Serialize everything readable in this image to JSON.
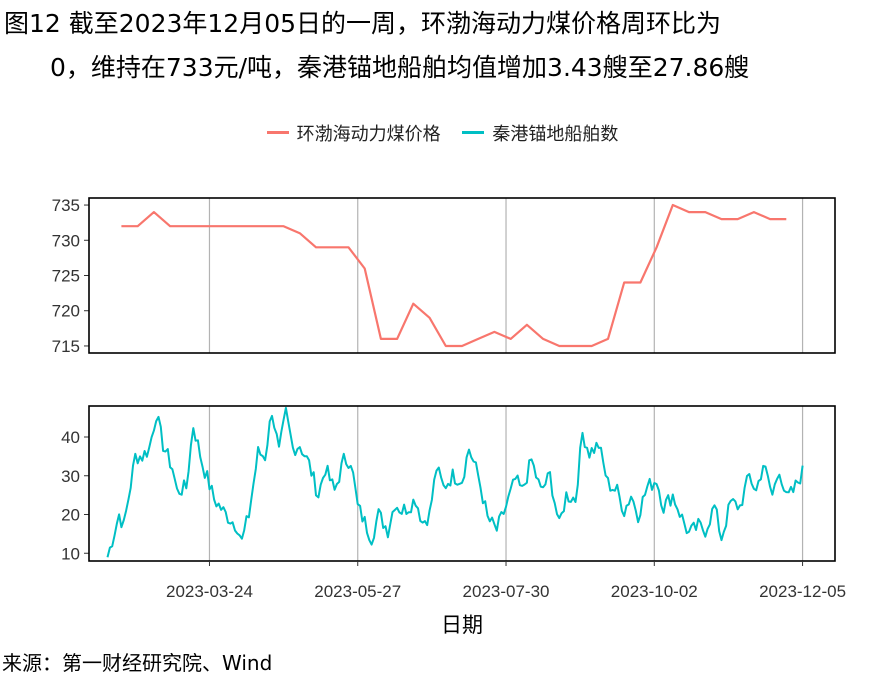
{
  "title": {
    "line1": "图12  截至2023年12月05日的一周，环渤海动力煤价格周环比为",
    "line2": "0，维持在733元/吨，秦港锚地船舶均值增加3.43艘至27.86艘"
  },
  "source": "来源：第一财经研究院、Wind",
  "colors": {
    "price": "#F8766D",
    "ships": "#00BFC4",
    "grid": "#B3B3B3"
  },
  "chart_data": [
    {
      "type": "line",
      "panel": "top",
      "series": [
        {
          "name": "环渤海动力煤价格",
          "x": [
            "2023-02-14",
            "2023-02-21",
            "2023-02-28",
            "2023-03-07",
            "2023-03-14",
            "2023-03-21",
            "2023-03-28",
            "2023-04-04",
            "2023-04-11",
            "2023-04-18",
            "2023-04-25",
            "2023-05-02",
            "2023-05-09",
            "2023-05-16",
            "2023-05-23",
            "2023-05-30",
            "2023-06-06",
            "2023-06-13",
            "2023-06-20",
            "2023-06-27",
            "2023-07-04",
            "2023-07-11",
            "2023-07-18",
            "2023-07-25",
            "2023-08-01",
            "2023-08-08",
            "2023-08-15",
            "2023-08-22",
            "2023-08-29",
            "2023-09-05",
            "2023-09-12",
            "2023-09-19",
            "2023-09-26",
            "2023-10-03",
            "2023-10-10",
            "2023-10-17",
            "2023-10-24",
            "2023-10-31",
            "2023-11-07",
            "2023-11-14",
            "2023-11-21",
            "2023-11-28",
            "2023-12-05"
          ],
          "values": [
            732,
            732,
            734,
            732,
            732,
            732,
            732,
            732,
            732,
            732,
            732,
            731,
            729,
            729,
            729,
            726,
            716,
            716,
            721,
            719,
            715,
            715,
            716,
            717,
            716,
            718,
            716,
            715,
            715,
            715,
            716,
            724,
            724,
            729,
            735,
            734,
            734,
            733,
            733,
            734,
            733,
            733,
            null
          ]
        }
      ],
      "ylim": [
        714,
        736
      ],
      "yticks": [
        715,
        720,
        725,
        730,
        735
      ]
    },
    {
      "type": "line",
      "panel": "bottom",
      "series": [
        {
          "name": "秦港锚地船舶数",
          "x_start": "2023-02-08",
          "x_end": "2023-12-05",
          "anchors": [
            [
              "2023-02-08",
              9
            ],
            [
              "2023-02-13",
              20
            ],
            [
              "2023-02-15",
              17
            ],
            [
              "2023-02-20",
              35
            ],
            [
              "2023-02-23",
              35
            ],
            [
              "2023-02-26",
              37
            ],
            [
              "2023-03-01",
              46
            ],
            [
              "2023-03-04",
              38
            ],
            [
              "2023-03-08",
              32
            ],
            [
              "2023-03-10",
              26
            ],
            [
              "2023-03-14",
              27
            ],
            [
              "2023-03-17",
              43
            ],
            [
              "2023-03-21",
              33
            ],
            [
              "2023-03-26",
              24
            ],
            [
              "2023-03-31",
              20
            ],
            [
              "2023-04-05",
              17
            ],
            [
              "2023-04-07",
              13
            ],
            [
              "2023-04-10",
              20
            ],
            [
              "2023-04-14",
              36
            ],
            [
              "2023-04-17",
              35
            ],
            [
              "2023-04-20",
              47
            ],
            [
              "2023-04-23",
              36
            ],
            [
              "2023-04-26",
              46
            ],
            [
              "2023-04-29",
              37
            ],
            [
              "2023-05-02",
              38
            ],
            [
              "2023-05-06",
              33
            ],
            [
              "2023-05-10",
              25
            ],
            [
              "2023-05-13",
              32
            ],
            [
              "2023-05-17",
              26
            ],
            [
              "2023-05-21",
              34
            ],
            [
              "2023-05-24",
              34
            ],
            [
              "2023-05-27",
              22
            ],
            [
              "2023-05-30",
              18
            ],
            [
              "2023-06-02",
              14
            ],
            [
              "2023-06-05",
              20
            ],
            [
              "2023-06-09",
              16
            ],
            [
              "2023-06-12",
              23
            ],
            [
              "2023-06-15",
              21
            ],
            [
              "2023-06-18",
              22
            ],
            [
              "2023-06-21",
              24
            ],
            [
              "2023-06-24",
              18
            ],
            [
              "2023-06-27",
              20
            ],
            [
              "2023-06-30",
              32
            ],
            [
              "2023-07-03",
              27
            ],
            [
              "2023-07-07",
              30
            ],
            [
              "2023-07-11",
              29
            ],
            [
              "2023-07-14",
              37
            ],
            [
              "2023-07-18",
              30
            ],
            [
              "2023-07-22",
              19
            ],
            [
              "2023-07-26",
              16
            ],
            [
              "2023-07-30",
              22
            ],
            [
              "2023-08-03",
              29
            ],
            [
              "2023-08-06",
              26
            ],
            [
              "2023-08-10",
              34
            ],
            [
              "2023-08-14",
              26
            ],
            [
              "2023-08-18",
              30
            ],
            [
              "2023-08-22",
              17
            ],
            [
              "2023-08-25",
              25
            ],
            [
              "2023-08-29",
              24
            ],
            [
              "2023-09-01",
              41
            ],
            [
              "2023-09-04",
              36
            ],
            [
              "2023-09-08",
              38
            ],
            [
              "2023-09-12",
              28
            ],
            [
              "2023-09-16",
              26
            ],
            [
              "2023-09-19",
              21
            ],
            [
              "2023-09-22",
              25
            ],
            [
              "2023-09-25",
              20
            ],
            [
              "2023-09-29",
              27
            ],
            [
              "2023-10-03",
              29
            ],
            [
              "2023-10-06",
              22
            ],
            [
              "2023-10-10",
              25
            ],
            [
              "2023-10-14",
              19
            ],
            [
              "2023-10-17",
              15
            ],
            [
              "2023-10-21",
              17
            ],
            [
              "2023-10-24",
              16
            ],
            [
              "2023-10-28",
              22
            ],
            [
              "2023-10-31",
              14
            ],
            [
              "2023-11-04",
              23
            ],
            [
              "2023-11-08",
              22
            ],
            [
              "2023-11-12",
              30
            ],
            [
              "2023-11-15",
              26
            ],
            [
              "2023-11-18",
              33
            ],
            [
              "2023-11-22",
              25
            ],
            [
              "2023-11-25",
              32
            ],
            [
              "2023-11-28",
              24
            ],
            [
              "2023-12-01",
              26
            ],
            [
              "2023-12-05",
              31
            ]
          ]
        }
      ],
      "ylim": [
        8,
        48
      ],
      "yticks": [
        10,
        20,
        30,
        40
      ]
    }
  ],
  "x_axis": {
    "label": "日期",
    "ticks": [
      "2023-03-24",
      "2023-05-27",
      "2023-07-30",
      "2023-10-02",
      "2023-12-05"
    ],
    "range": [
      "2023-01-31",
      "2023-12-19"
    ]
  }
}
